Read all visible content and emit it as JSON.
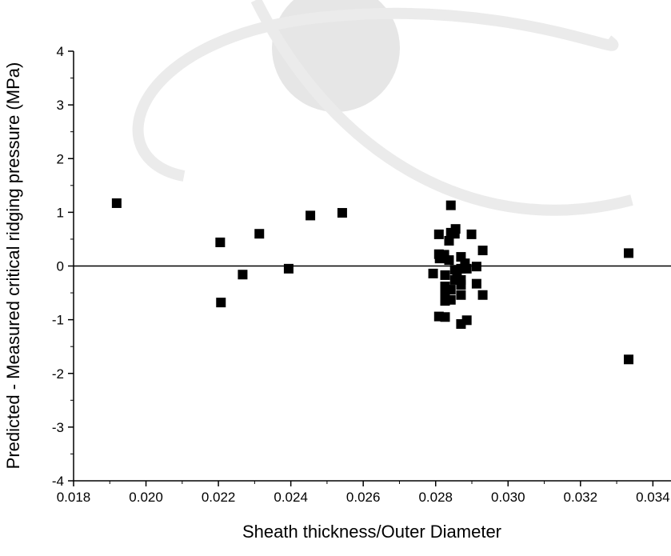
{
  "chart_data": {
    "type": "scatter",
    "x_label": "Sheath thickness/Outer Diameter",
    "y_label": "Predicted - Measured critical ridging pressure (MPa)",
    "xlim": [
      0.018,
      0.0345
    ],
    "ylim": [
      -4,
      4
    ],
    "xticks": [
      0.018,
      {
        "value": 0.02,
        "label": "0.020"
      },
      0.022,
      0.024,
      0.026,
      0.028,
      {
        "value": 0.03,
        "label": "0.030"
      },
      0.032,
      0.034
    ],
    "yticks": [
      -4,
      -3,
      -2,
      -1,
      0,
      1,
      2,
      3,
      4
    ],
    "reference_line": 0,
    "color": "#000000",
    "x": [
      0.01919,
      0.02205,
      0.02207,
      0.02267,
      0.02313,
      0.02394,
      0.02454,
      0.02542,
      0.02793,
      0.02809,
      0.02809,
      0.02811,
      0.02809,
      0.02826,
      0.02824,
      0.02826,
      0.02826,
      0.02826,
      0.02826,
      0.02837,
      0.02837,
      0.02842,
      0.02842,
      0.02842,
      0.02842,
      0.02855,
      0.02853,
      0.02853,
      0.02853,
      0.02859,
      0.0287,
      0.0287,
      0.0287,
      0.0287,
      0.0287,
      0.0287,
      0.02886,
      0.02886,
      0.02881,
      0.02899,
      0.02913,
      0.02913,
      0.0293,
      0.0293,
      0.03333,
      0.03333
    ],
    "values": [
      1.17,
      0.44,
      -0.68,
      -0.16,
      0.6,
      -0.05,
      0.94,
      0.99,
      -0.14,
      0.59,
      0.22,
      0.14,
      -0.94,
      -0.95,
      0.21,
      -0.17,
      -0.38,
      -0.53,
      -0.65,
      0.11,
      0.47,
      1.13,
      0.62,
      -0.44,
      -0.63,
      0.69,
      0.6,
      -0.07,
      -0.26,
      -0.16,
      -0.05,
      0.17,
      -0.26,
      -0.35,
      -0.54,
      -1.08,
      -1.01,
      -0.05,
      0.05,
      0.59,
      -0.01,
      -0.33,
      0.29,
      -0.54,
      0.24,
      -1.74
    ]
  }
}
